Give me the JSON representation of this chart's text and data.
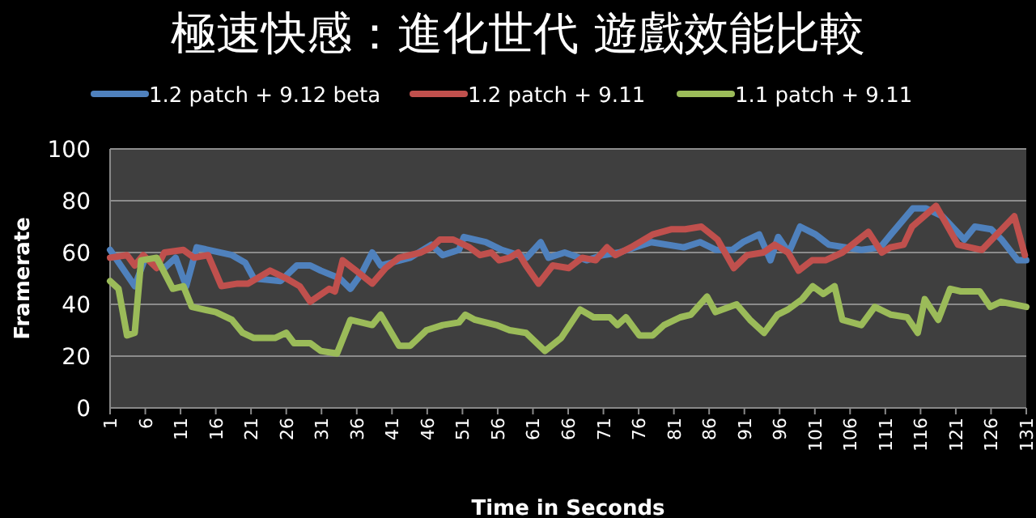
{
  "chart_data": {
    "type": "line",
    "title": "極速快感：進化世代 遊戲效能比較",
    "xlabel": "Time in Seconds",
    "ylabel": "Framerate",
    "xlim": [
      1,
      131
    ],
    "xticks": [
      1,
      6,
      11,
      16,
      21,
      26,
      31,
      36,
      41,
      46,
      51,
      56,
      61,
      66,
      71,
      76,
      81,
      86,
      91,
      96,
      101,
      106,
      111,
      116,
      121,
      126,
      131
    ],
    "ylim": [
      0,
      100
    ],
    "yticks": [
      0,
      20,
      40,
      60,
      80,
      100
    ],
    "grid": "y",
    "legend": "top",
    "marker": "none",
    "line_style": "solid",
    "series": [
      {
        "name": "1.2 patch + 9.12 beta",
        "color": "#4f81bd",
        "x": [
          1,
          4.5,
          6,
          8.7,
          10.3,
          11.8,
          13.3,
          18.3,
          20.2,
          21.4,
          25.2,
          27.5,
          29.4,
          30.9,
          33.6,
          35.1,
          36.7,
          38.2,
          39.4,
          43.6,
          46.6,
          48.2,
          50.5,
          51.2,
          54.3,
          56.6,
          60.1,
          62.1,
          63.2,
          65.5,
          68.6,
          70.9,
          73.2,
          77.8,
          82.4,
          84.7,
          87,
          89.3,
          90.8,
          93.1,
          94.7,
          95.8,
          97.3,
          98.9,
          101.1,
          103,
          107.6,
          110.3,
          111.8,
          114.9,
          116.8,
          119.1,
          122.2,
          123.7,
          126,
          127.5,
          129.8,
          131
        ],
        "values": [
          61,
          47,
          58,
          54,
          58,
          47,
          62,
          59,
          56,
          50,
          49,
          55,
          55,
          53,
          50,
          46,
          52,
          60,
          55,
          58,
          63,
          59,
          61,
          66,
          64,
          61,
          58,
          64,
          58,
          60,
          57,
          59,
          60,
          64,
          62,
          64,
          61,
          61,
          64,
          67,
          57,
          66,
          60,
          70,
          67,
          63,
          61,
          62,
          67,
          77,
          77,
          74,
          65,
          70,
          69,
          65,
          57,
          57
        ]
      },
      {
        "name": "1.2 patch + 9.11",
        "color": "#c0504d",
        "x": [
          1,
          3.4,
          4.5,
          5.7,
          7.6,
          8.7,
          11.4,
          12.9,
          14.9,
          16.8,
          19.1,
          20.6,
          23.7,
          26,
          27.9,
          29.4,
          32.1,
          32.9,
          34,
          35.9,
          38.2,
          40.1,
          42,
          45.1,
          46.6,
          47.8,
          49.7,
          52,
          53.5,
          55.1,
          56.2,
          57.7,
          58.9,
          60,
          61.8,
          63.8,
          66.1,
          68,
          69.9,
          71.5,
          72.7,
          74.9,
          78,
          80.7,
          82.6,
          84.9,
          87.2,
          89.5,
          91.4,
          93.7,
          95.3,
          97.2,
          98.7,
          100.6,
          102.5,
          104.9,
          108.6,
          110.5,
          111.7,
          113.6,
          114.8,
          118.2,
          121.3,
          124.7,
          129.3,
          130.8
        ],
        "values": [
          58,
          59,
          55,
          59,
          54,
          60,
          61,
          58,
          59,
          47,
          48,
          48,
          53,
          50,
          47,
          41,
          46,
          45,
          57,
          53,
          48,
          54,
          58,
          60,
          62,
          65,
          65,
          62,
          59,
          60,
          57,
          58,
          60,
          55,
          48,
          55,
          54,
          58,
          57,
          62,
          59,
          62,
          67,
          69,
          69,
          70,
          65,
          54,
          59,
          60,
          63,
          60,
          53,
          57,
          57,
          60,
          68,
          60,
          62,
          63,
          70,
          78,
          63,
          61,
          74,
          59
        ]
      },
      {
        "name": "1.1 patch + 9.11",
        "color": "#9bbb59",
        "x": [
          1,
          2.2,
          3.4,
          4.5,
          5.4,
          7.6,
          9.9,
          11.4,
          12.6,
          16,
          18.3,
          19.8,
          21.4,
          24.4,
          26,
          27.1,
          29.4,
          30.9,
          33.2,
          35.1,
          38.2,
          39.4,
          42,
          43.6,
          45.9,
          48.2,
          50.5,
          51.4,
          52.8,
          55.8,
          57.7,
          60,
          62.7,
          65,
          67.7,
          69.6,
          71.9,
          73,
          74.2,
          76.1,
          78,
          79.6,
          81.9,
          83.4,
          85.7,
          86.9,
          89.9,
          91.8,
          93.8,
          95.7,
          97.2,
          99.2,
          100.7,
          102.2,
          103.8,
          104.9,
          107.6,
          109.5,
          111.8,
          114.1,
          115.6,
          116.6,
          118.5,
          120.2,
          121.7,
          124.4,
          125.9,
          127.4,
          131
        ],
        "values": [
          49,
          46,
          28,
          29,
          57,
          58,
          46,
          47,
          39,
          37,
          34,
          29,
          27,
          27,
          29,
          25,
          25,
          22,
          21,
          34,
          32,
          36,
          24,
          24,
          30,
          32,
          33,
          36,
          34,
          32,
          30,
          29,
          22,
          27,
          38,
          35,
          35,
          32,
          35,
          28,
          28,
          32,
          35,
          36,
          43,
          37,
          40,
          34,
          29,
          36,
          38,
          42,
          47,
          44,
          47,
          34,
          32,
          39,
          36,
          35,
          29,
          42,
          34,
          46,
          45,
          45,
          39,
          41,
          39
        ]
      }
    ]
  }
}
